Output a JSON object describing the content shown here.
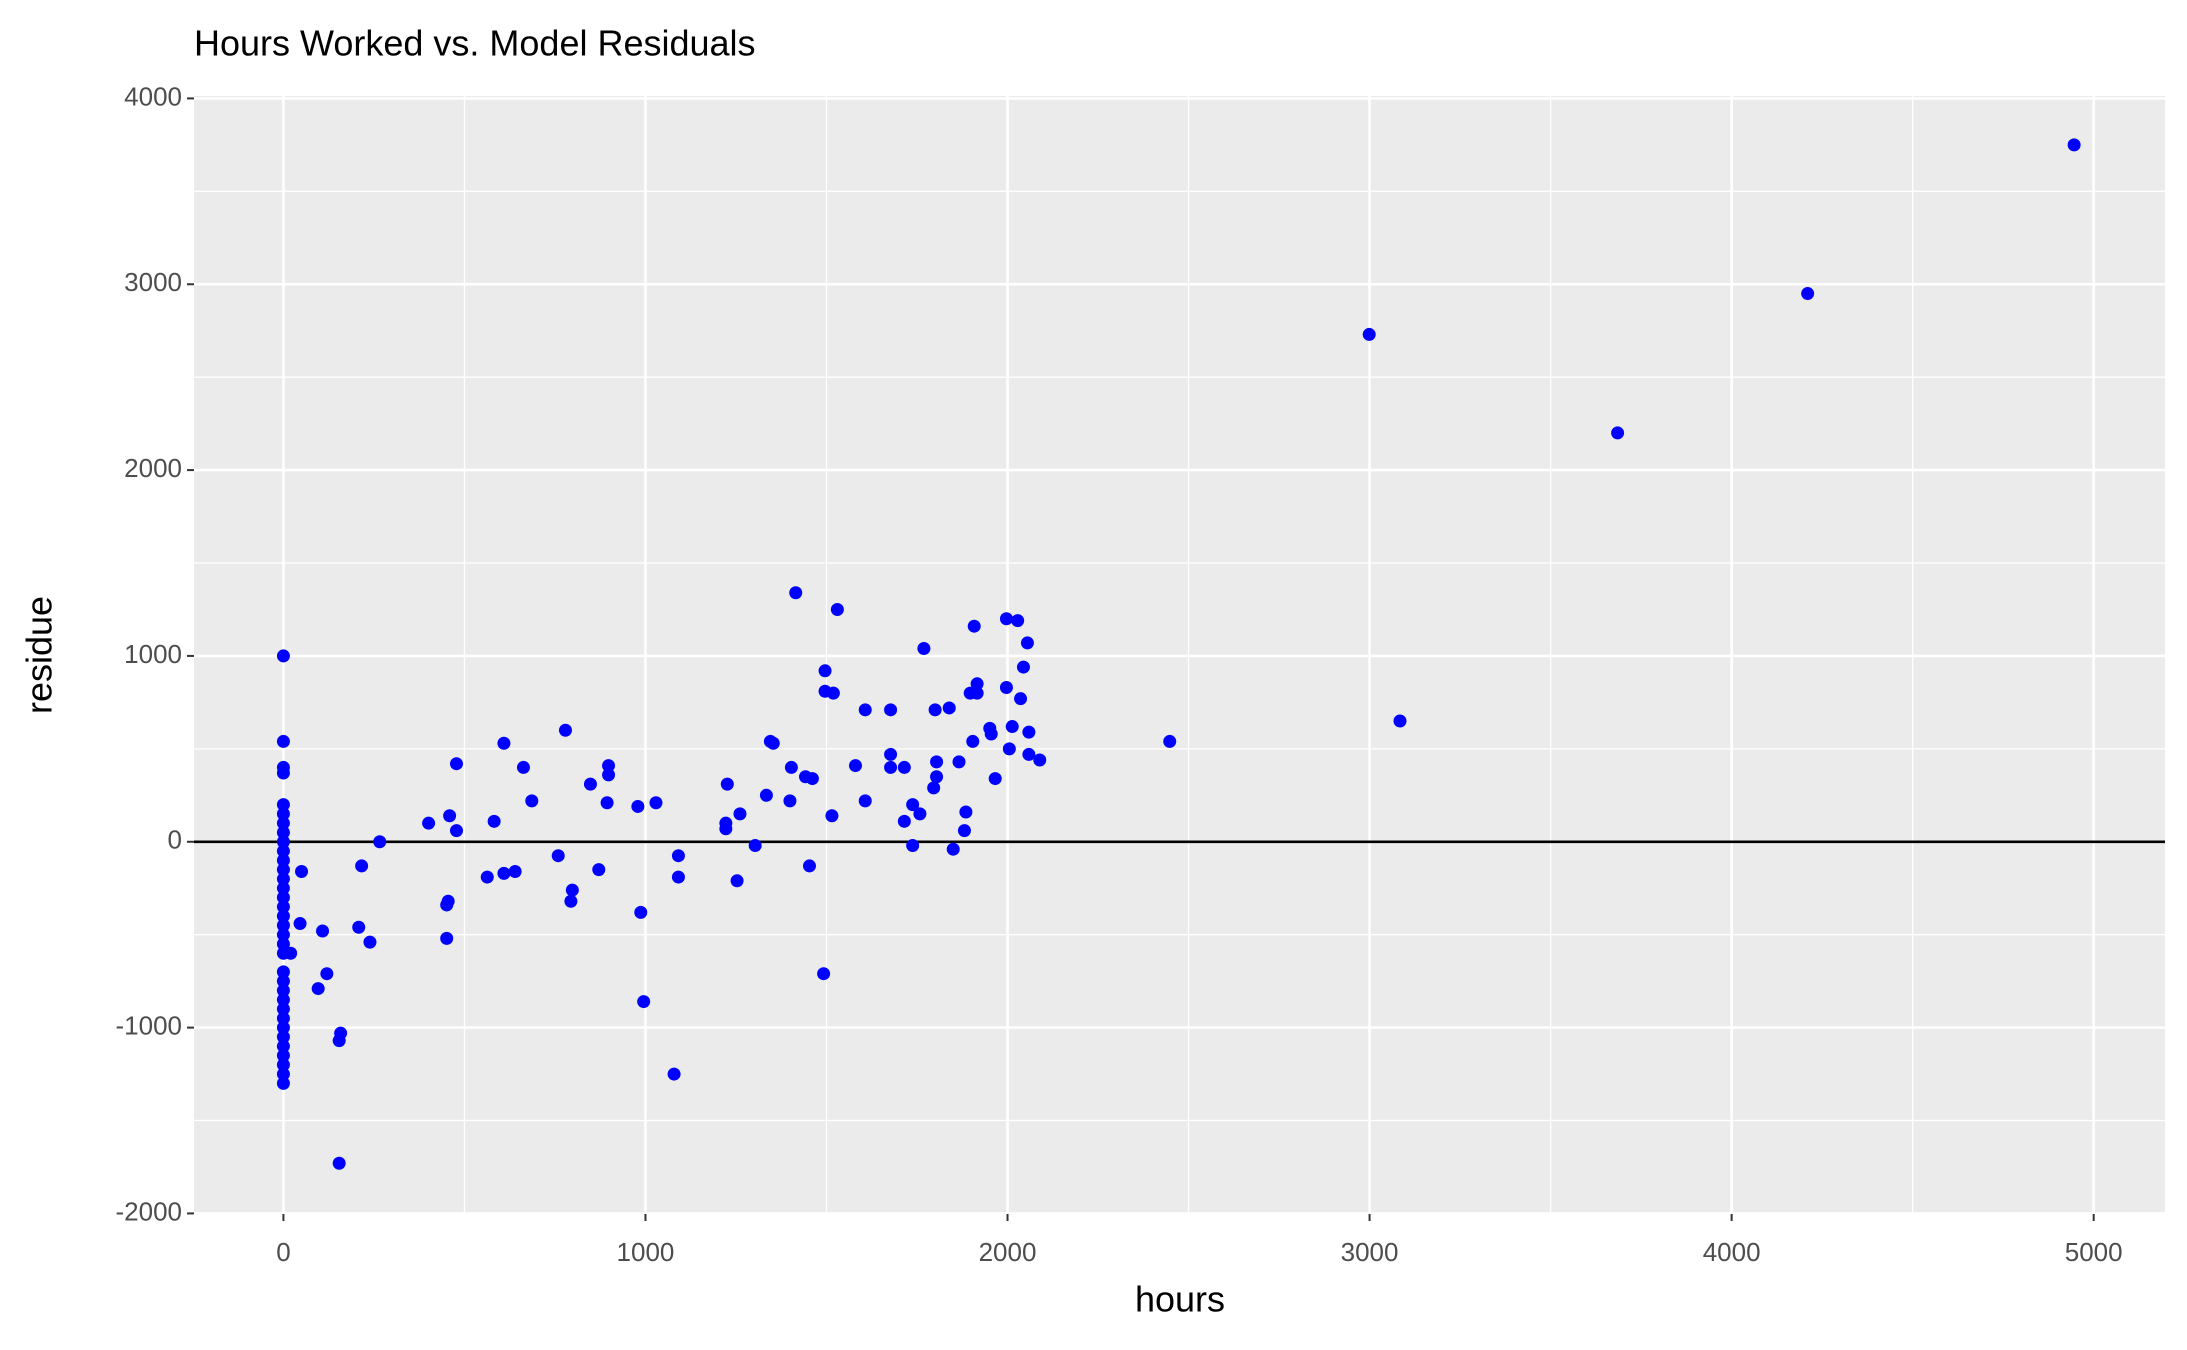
{
  "chart_data": {
    "type": "scatter",
    "title": "Hours Worked vs. Model Residuals",
    "x_label": "hours",
    "y_label": "residue",
    "color": "#0000ff",
    "grid": true,
    "hline": 0,
    "xlim": [
      -247,
      5197
    ],
    "ylim": [
      -2003,
      4013
    ],
    "xticks": [
      0,
      1000,
      2000,
      3000,
      4000,
      5000
    ],
    "yticks": [
      -2000,
      -1000,
      0,
      1000,
      2000,
      3000,
      4000
    ],
    "x": [
      0,
      0,
      0,
      0,
      0,
      0,
      0,
      0,
      0,
      0,
      0,
      0,
      0,
      0,
      0,
      0,
      0,
      0,
      0,
      0,
      0,
      0,
      0,
      0,
      0,
      0,
      0,
      0,
      0,
      0,
      0,
      0,
      0,
      0,
      46,
      50,
      20,
      108,
      96,
      120,
      158,
      154,
      154,
      216,
      208,
      239,
      266,
      401,
      459,
      455,
      451,
      451,
      478,
      478,
      582,
      563,
      609,
      609,
      640,
      663,
      686,
      759,
      779,
      798,
      794,
      848,
      871,
      894,
      898,
      898,
      979,
      987,
      995,
      1029,
      1079,
      1091,
      1091,
      1222,
      1222,
      1226,
      1253,
      1261,
      1303,
      1334,
      1345,
      1353,
      1403,
      1399,
      1415,
      1442,
      1461,
      1453,
      1496,
      1496,
      1492,
      1519,
      1515,
      1530,
      1580,
      1607,
      1607,
      1677,
      1677,
      1677,
      1715,
      1715,
      1738,
      1738,
      1758,
      1769,
      1796,
      1800,
      1804,
      1804,
      1839,
      1850,
      1866,
      1881,
      1885,
      1897,
      1904,
      1908,
      1916,
      1916,
      1951,
      1955,
      1966,
      1997,
      1997,
      2005,
      2013,
      2028,
      2036,
      2044,
      2055,
      2059,
      2059,
      2089,
      2448,
      2999,
      3084,
      3685,
      4210,
      4946
    ],
    "values": [
      1000,
      540,
      400,
      370,
      200,
      150,
      100,
      50,
      0,
      -50,
      -100,
      -150,
      -200,
      -250,
      -300,
      -350,
      -400,
      -450,
      -500,
      -550,
      -600,
      -700,
      -750,
      -800,
      -850,
      -900,
      -950,
      -1000,
      -1050,
      -1100,
      -1150,
      -1200,
      -1250,
      -1300,
      -440,
      -160,
      -600,
      -480,
      -790,
      -710,
      -1030,
      -1070,
      -1730,
      -130,
      -460,
      -540,
      0,
      100,
      140,
      -320,
      -340,
      -520,
      420,
      60,
      110,
      -190,
      530,
      -170,
      -160,
      400,
      220,
      -75,
      600,
      -260,
      -320,
      310,
      -150,
      210,
      410,
      360,
      190,
      -380,
      -860,
      210,
      -1250,
      -75,
      -190,
      100,
      70,
      310,
      -210,
      150,
      -20,
      250,
      540,
      530,
      400,
      220,
      1340,
      350,
      340,
      -130,
      920,
      810,
      -710,
      800,
      140,
      1250,
      410,
      710,
      220,
      710,
      470,
      400,
      400,
      110,
      200,
      -20,
      150,
      1040,
      290,
      710,
      430,
      350,
      720,
      -40,
      430,
      60,
      160,
      800,
      540,
      1160,
      850,
      800,
      610,
      580,
      340,
      1200,
      830,
      500,
      620,
      1190,
      770,
      940,
      1070,
      590,
      470,
      440,
      540,
      2730,
      650,
      2200,
      2950,
      3750
    ]
  }
}
